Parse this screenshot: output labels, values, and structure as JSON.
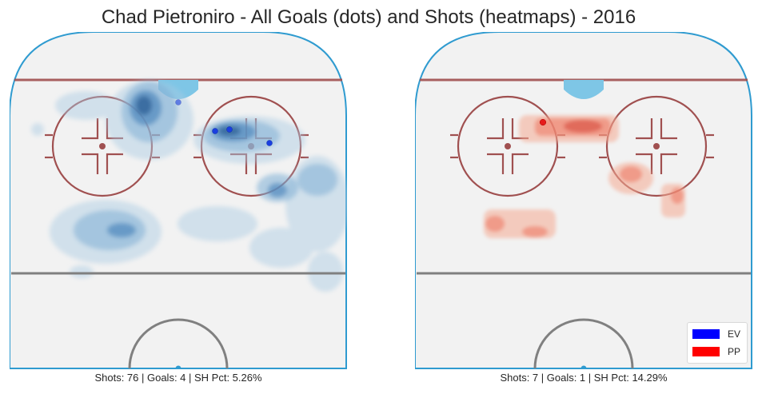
{
  "title": "Chad Pietroniro - All Goals (dots) and Shots (heatmaps) - 2016",
  "colors": {
    "ev": "#0000ff",
    "pp": "#ff0000",
    "rink_line": "#a05050",
    "boards": "#2f9bd0",
    "ice": "#f2f2f2",
    "center_line": "#808080"
  },
  "legend": {
    "placement": "lower-right",
    "items": [
      {
        "label": "EV",
        "color": "#0000ff"
      },
      {
        "label": "PP",
        "color": "#ff0000"
      }
    ]
  },
  "chart_data": [
    {
      "type": "heatmap",
      "panel": "EV",
      "caption": "Shots: 76 | Goals: 4 | SH Pct: 5.26%",
      "goals": [
        {
          "x": 0.5,
          "y": 0.21
        },
        {
          "x": 0.61,
          "y": 0.29
        },
        {
          "x": 0.65,
          "y": 0.29
        },
        {
          "x": 0.77,
          "y": 0.33
        }
      ],
      "grid": false
    },
    {
      "type": "heatmap",
      "panel": "PP",
      "caption": "Shots: 7 | Goals: 1 | SH Pct: 14.29%",
      "goals": [
        {
          "x": 0.38,
          "y": 0.27
        }
      ],
      "grid": false
    }
  ]
}
